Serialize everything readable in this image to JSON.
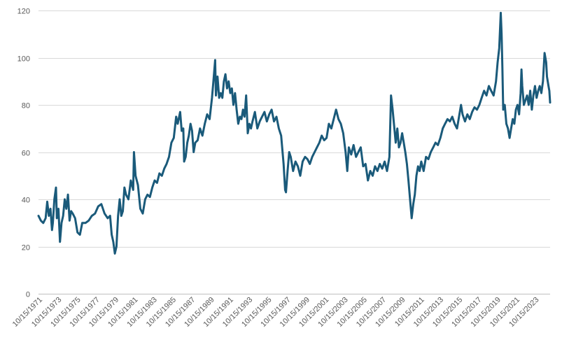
{
  "chart_data": {
    "type": "line",
    "title": "",
    "xlabel": "",
    "ylabel": "",
    "ylim": [
      0,
      120
    ],
    "yticks": [
      0,
      20,
      40,
      60,
      80,
      100,
      120
    ],
    "grid": true,
    "legend": "none",
    "xticks": [
      "10/15/1971",
      "10/15/1973",
      "10/15/1975",
      "10/15/1977",
      "10/15/1979",
      "10/15/1981",
      "10/15/1983",
      "10/15/1985",
      "10/15/1987",
      "10/15/1989",
      "10/15/1991",
      "10/15/1993",
      "10/15/1995",
      "10/15/1997",
      "10/15/1999",
      "10/15/2001",
      "10/15/2003",
      "10/15/2005",
      "10/15/2007",
      "10/15/2009",
      "10/15/2011",
      "10/15/2013",
      "10/15/2015",
      "10/15/2017",
      "10/15/2019",
      "10/15/2021",
      "10/15/2023"
    ],
    "series": [
      {
        "color": "#1a5a7a",
        "points": [
          [
            "1971-10-15",
            33
          ],
          [
            "1972-01-15",
            31
          ],
          [
            "1972-04-15",
            30
          ],
          [
            "1972-07-15",
            32
          ],
          [
            "1972-09-15",
            39
          ],
          [
            "1972-11-15",
            33
          ],
          [
            "1973-01-15",
            36
          ],
          [
            "1973-03-15",
            27
          ],
          [
            "1973-04-15",
            30
          ],
          [
            "1973-06-15",
            40
          ],
          [
            "1973-08-15",
            45
          ],
          [
            "1973-09-15",
            32
          ],
          [
            "1973-11-15",
            36
          ],
          [
            "1974-01-15",
            22
          ],
          [
            "1974-03-15",
            30
          ],
          [
            "1974-05-15",
            33
          ],
          [
            "1974-07-15",
            40
          ],
          [
            "1974-09-15",
            36
          ],
          [
            "1974-11-15",
            42
          ],
          [
            "1975-01-15",
            31
          ],
          [
            "1975-03-15",
            35
          ],
          [
            "1975-05-15",
            34
          ],
          [
            "1975-08-15",
            32
          ],
          [
            "1975-11-15",
            26
          ],
          [
            "1976-02-15",
            25
          ],
          [
            "1976-05-15",
            30
          ],
          [
            "1976-09-15",
            30
          ],
          [
            "1977-01-15",
            31
          ],
          [
            "1977-05-15",
            33
          ],
          [
            "1977-09-15",
            34
          ],
          [
            "1978-01-15",
            37
          ],
          [
            "1978-05-15",
            38
          ],
          [
            "1978-09-15",
            34
          ],
          [
            "1979-01-15",
            32
          ],
          [
            "1979-04-15",
            33
          ],
          [
            "1979-06-15",
            25
          ],
          [
            "1979-08-15",
            22
          ],
          [
            "1979-10-15",
            17
          ],
          [
            "1979-12-15",
            20
          ],
          [
            "1980-02-15",
            33
          ],
          [
            "1980-04-15",
            40
          ],
          [
            "1980-06-15",
            33
          ],
          [
            "1980-08-15",
            35
          ],
          [
            "1980-10-15",
            45
          ],
          [
            "1980-12-15",
            42
          ],
          [
            "1981-03-15",
            40
          ],
          [
            "1981-06-15",
            48
          ],
          [
            "1981-09-15",
            44
          ],
          [
            "1981-10-15",
            60
          ],
          [
            "1981-12-15",
            50
          ],
          [
            "1982-03-15",
            46
          ],
          [
            "1982-06-15",
            36
          ],
          [
            "1982-09-15",
            34
          ],
          [
            "1982-12-15",
            40
          ],
          [
            "1983-03-15",
            42
          ],
          [
            "1983-06-15",
            41
          ],
          [
            "1983-09-15",
            45
          ],
          [
            "1983-12-15",
            48
          ],
          [
            "1984-03-15",
            47
          ],
          [
            "1984-06-15",
            51
          ],
          [
            "1984-09-15",
            50
          ],
          [
            "1984-12-15",
            53
          ],
          [
            "1985-03-15",
            55
          ],
          [
            "1985-06-15",
            58
          ],
          [
            "1985-09-15",
            64
          ],
          [
            "1985-12-15",
            66
          ],
          [
            "1986-03-15",
            75
          ],
          [
            "1986-05-15",
            72
          ],
          [
            "1986-08-15",
            77
          ],
          [
            "1986-10-15",
            69
          ],
          [
            "1986-12-15",
            70
          ],
          [
            "1987-01-15",
            56
          ],
          [
            "1987-03-15",
            58
          ],
          [
            "1987-05-15",
            64
          ],
          [
            "1987-07-15",
            67
          ],
          [
            "1987-09-15",
            72
          ],
          [
            "1987-11-15",
            69
          ],
          [
            "1988-01-15",
            60
          ],
          [
            "1988-03-15",
            64
          ],
          [
            "1988-06-15",
            65
          ],
          [
            "1988-09-15",
            70
          ],
          [
            "1988-12-15",
            67
          ],
          [
            "1989-03-15",
            72
          ],
          [
            "1989-06-15",
            76
          ],
          [
            "1989-09-15",
            74
          ],
          [
            "1989-12-15",
            83
          ],
          [
            "1990-02-15",
            91
          ],
          [
            "1990-04-15",
            99
          ],
          [
            "1990-05-15",
            84
          ],
          [
            "1990-07-15",
            92
          ],
          [
            "1990-09-15",
            83
          ],
          [
            "1990-11-15",
            85
          ],
          [
            "1991-01-15",
            83
          ],
          [
            "1991-03-15",
            90
          ],
          [
            "1991-05-15",
            93
          ],
          [
            "1991-07-15",
            87
          ],
          [
            "1991-09-15",
            90
          ],
          [
            "1991-11-15",
            85
          ],
          [
            "1992-01-15",
            87
          ],
          [
            "1992-03-15",
            80
          ],
          [
            "1992-05-15",
            85
          ],
          [
            "1992-07-15",
            78
          ],
          [
            "1992-09-15",
            72
          ],
          [
            "1992-11-15",
            75
          ],
          [
            "1993-01-15",
            74
          ],
          [
            "1993-03-15",
            78
          ],
          [
            "1993-05-15",
            75
          ],
          [
            "1993-07-15",
            84
          ],
          [
            "1993-09-15",
            68
          ],
          [
            "1993-11-15",
            72
          ],
          [
            "1994-01-15",
            70
          ],
          [
            "1994-03-15",
            73
          ],
          [
            "1994-06-15",
            77
          ],
          [
            "1994-09-15",
            70
          ],
          [
            "1994-12-15",
            73
          ],
          [
            "1995-03-15",
            75
          ],
          [
            "1995-06-15",
            77
          ],
          [
            "1995-09-15",
            73
          ],
          [
            "1995-12-15",
            76
          ],
          [
            "1996-03-15",
            78
          ],
          [
            "1996-06-15",
            73
          ],
          [
            "1996-09-15",
            75
          ],
          [
            "1996-12-15",
            70
          ],
          [
            "1997-03-15",
            67
          ],
          [
            "1997-06-15",
            55
          ],
          [
            "1997-08-15",
            44
          ],
          [
            "1997-09-15",
            43
          ],
          [
            "1997-11-15",
            52
          ],
          [
            "1998-01-15",
            60
          ],
          [
            "1998-03-15",
            58
          ],
          [
            "1998-06-15",
            52
          ],
          [
            "1998-09-15",
            56
          ],
          [
            "1998-12-15",
            54
          ],
          [
            "1999-03-15",
            50
          ],
          [
            "1999-06-15",
            56
          ],
          [
            "1999-09-15",
            58
          ],
          [
            "1999-12-15",
            57
          ],
          [
            "2000-03-15",
            55
          ],
          [
            "2000-06-15",
            58
          ],
          [
            "2000-09-15",
            60
          ],
          [
            "2000-12-15",
            62
          ],
          [
            "2001-03-15",
            64
          ],
          [
            "2001-06-15",
            67
          ],
          [
            "2001-09-15",
            65
          ],
          [
            "2001-12-15",
            66
          ],
          [
            "2002-03-15",
            72
          ],
          [
            "2002-06-15",
            70
          ],
          [
            "2002-09-15",
            74
          ],
          [
            "2002-12-15",
            78
          ],
          [
            "2003-03-15",
            74
          ],
          [
            "2003-06-15",
            72
          ],
          [
            "2003-09-15",
            68
          ],
          [
            "2003-12-15",
            60
          ],
          [
            "2004-02-15",
            52
          ],
          [
            "2004-04-15",
            62
          ],
          [
            "2004-07-15",
            59
          ],
          [
            "2004-10-15",
            63
          ],
          [
            "2005-01-15",
            58
          ],
          [
            "2005-04-15",
            60
          ],
          [
            "2005-07-15",
            62
          ],
          [
            "2005-10-15",
            54
          ],
          [
            "2006-01-15",
            55
          ],
          [
            "2006-04-15",
            48
          ],
          [
            "2006-07-15",
            52
          ],
          [
            "2006-10-15",
            50
          ],
          [
            "2007-01-15",
            54
          ],
          [
            "2007-04-15",
            52
          ],
          [
            "2007-07-15",
            55
          ],
          [
            "2007-10-15",
            53
          ],
          [
            "2008-01-15",
            56
          ],
          [
            "2008-04-15",
            52
          ],
          [
            "2008-07-15",
            58
          ],
          [
            "2008-09-15",
            84
          ],
          [
            "2008-11-15",
            78
          ],
          [
            "2009-01-15",
            71
          ],
          [
            "2009-03-15",
            64
          ],
          [
            "2009-05-15",
            70
          ],
          [
            "2009-07-15",
            62
          ],
          [
            "2009-09-15",
            64
          ],
          [
            "2009-11-15",
            68
          ],
          [
            "2010-01-15",
            64
          ],
          [
            "2010-03-15",
            60
          ],
          [
            "2010-05-15",
            55
          ],
          [
            "2010-07-15",
            48
          ],
          [
            "2010-09-15",
            40
          ],
          [
            "2010-11-15",
            32
          ],
          [
            "2011-01-15",
            38
          ],
          [
            "2011-03-15",
            42
          ],
          [
            "2011-05-15",
            50
          ],
          [
            "2011-07-15",
            54
          ],
          [
            "2011-09-15",
            52
          ],
          [
            "2011-11-15",
            56
          ],
          [
            "2012-02-15",
            52
          ],
          [
            "2012-05-15",
            58
          ],
          [
            "2012-08-15",
            57
          ],
          [
            "2012-11-15",
            60
          ],
          [
            "2013-02-15",
            62
          ],
          [
            "2013-05-15",
            64
          ],
          [
            "2013-08-15",
            63
          ],
          [
            "2013-11-15",
            66
          ],
          [
            "2014-02-15",
            70
          ],
          [
            "2014-05-15",
            72
          ],
          [
            "2014-08-15",
            74
          ],
          [
            "2014-11-15",
            73
          ],
          [
            "2015-02-15",
            75
          ],
          [
            "2015-05-15",
            72
          ],
          [
            "2015-08-15",
            70
          ],
          [
            "2015-10-15",
            74
          ],
          [
            "2016-01-15",
            80
          ],
          [
            "2016-03-15",
            76
          ],
          [
            "2016-06-15",
            73
          ],
          [
            "2016-09-15",
            76
          ],
          [
            "2016-12-15",
            74
          ],
          [
            "2017-03-15",
            77
          ],
          [
            "2017-06-15",
            79
          ],
          [
            "2017-09-15",
            78
          ],
          [
            "2017-12-15",
            80
          ],
          [
            "2018-03-15",
            83
          ],
          [
            "2018-06-15",
            86
          ],
          [
            "2018-09-15",
            84
          ],
          [
            "2018-12-15",
            88
          ],
          [
            "2019-03-15",
            86
          ],
          [
            "2019-06-15",
            84
          ],
          [
            "2019-09-15",
            90
          ],
          [
            "2019-11-15",
            98
          ],
          [
            "2020-01-15",
            104
          ],
          [
            "2020-03-15",
            119
          ],
          [
            "2020-04-15",
            110
          ],
          [
            "2020-05-15",
            96
          ],
          [
            "2020-06-15",
            78
          ],
          [
            "2020-08-15",
            80
          ],
          [
            "2020-10-15",
            72
          ],
          [
            "2020-12-15",
            70
          ],
          [
            "2021-02-15",
            66
          ],
          [
            "2021-04-15",
            70
          ],
          [
            "2021-06-15",
            74
          ],
          [
            "2021-08-15",
            72
          ],
          [
            "2021-10-15",
            78
          ],
          [
            "2021-12-15",
            80
          ],
          [
            "2022-02-15",
            76
          ],
          [
            "2022-04-15",
            85
          ],
          [
            "2022-05-15",
            95
          ],
          [
            "2022-06-15",
            88
          ],
          [
            "2022-08-15",
            80
          ],
          [
            "2022-10-15",
            82
          ],
          [
            "2022-12-15",
            84
          ],
          [
            "2023-02-15",
            80
          ],
          [
            "2023-04-15",
            86
          ],
          [
            "2023-06-15",
            78
          ],
          [
            "2023-08-15",
            84
          ],
          [
            "2023-10-15",
            88
          ],
          [
            "2023-12-15",
            83
          ],
          [
            "2024-02-15",
            86
          ],
          [
            "2024-04-15",
            88
          ],
          [
            "2024-06-15",
            85
          ],
          [
            "2024-08-15",
            90
          ],
          [
            "2024-10-15",
            102
          ],
          [
            "2024-12-15",
            98
          ],
          [
            "2025-01-15",
            92
          ],
          [
            "2025-03-15",
            88
          ],
          [
            "2025-04-15",
            86
          ],
          [
            "2025-05-15",
            81
          ]
        ]
      }
    ]
  }
}
